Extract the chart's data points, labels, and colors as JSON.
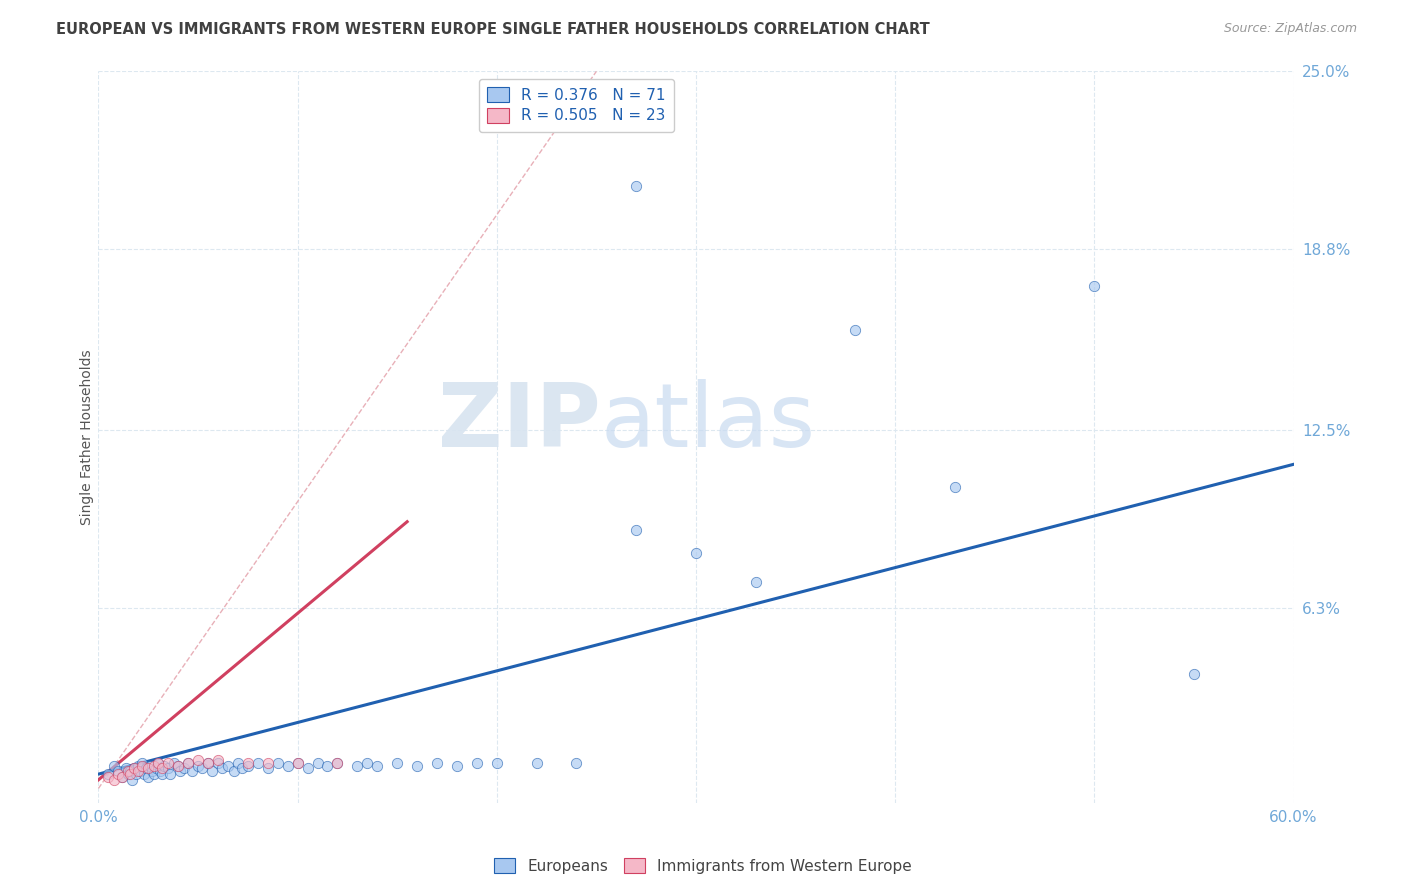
{
  "title": "EUROPEAN VS IMMIGRANTS FROM WESTERN EUROPE SINGLE FATHER HOUSEHOLDS CORRELATION CHART",
  "source": "Source: ZipAtlas.com",
  "ylabel": "Single Father Households",
  "watermark_zip": "ZIP",
  "watermark_atlas": "atlas",
  "xlim": [
    0.0,
    0.6
  ],
  "ylim": [
    -0.005,
    0.25
  ],
  "xticks": [
    0.0,
    0.1,
    0.2,
    0.3,
    0.4,
    0.5,
    0.6
  ],
  "ytick_labels_right": [
    "25.0%",
    "18.8%",
    "12.5%",
    "6.3%"
  ],
  "ytick_positions_right": [
    0.25,
    0.188,
    0.125,
    0.063
  ],
  "blue_R": 0.376,
  "blue_N": 71,
  "pink_R": 0.505,
  "pink_N": 23,
  "blue_color": "#a8c8f0",
  "pink_color": "#f5b8c8",
  "blue_line_color": "#2060b0",
  "pink_line_color": "#d04060",
  "diag_line_color": "#e8b0b8",
  "grid_color": "#dde8f0",
  "title_color": "#404040",
  "right_label_color": "#70a8d8",
  "blue_trend_x": [
    0.0,
    0.6
  ],
  "blue_trend_y": [
    0.005,
    0.113
  ],
  "pink_trend_x": [
    0.0,
    0.155
  ],
  "pink_trend_y": [
    0.003,
    0.093
  ],
  "diag_line_x": [
    0.0,
    0.25
  ],
  "diag_line_y": [
    0.0,
    0.25
  ],
  "bg_color": "#ffffff",
  "scatter_size": 55,
  "scatter_alpha": 0.65,
  "blue_scatter_x": [
    0.005,
    0.008,
    0.01,
    0.012,
    0.014,
    0.015,
    0.016,
    0.017,
    0.018,
    0.019,
    0.02,
    0.021,
    0.022,
    0.023,
    0.024,
    0.025,
    0.026,
    0.027,
    0.028,
    0.029,
    0.03,
    0.031,
    0.032,
    0.033,
    0.035,
    0.036,
    0.038,
    0.04,
    0.041,
    0.043,
    0.045,
    0.047,
    0.05,
    0.052,
    0.055,
    0.057,
    0.06,
    0.062,
    0.065,
    0.068,
    0.07,
    0.072,
    0.075,
    0.08,
    0.085,
    0.09,
    0.095,
    0.1,
    0.105,
    0.11,
    0.115,
    0.12,
    0.13,
    0.135,
    0.14,
    0.15,
    0.16,
    0.17,
    0.18,
    0.19,
    0.2,
    0.22,
    0.24,
    0.27,
    0.3,
    0.33,
    0.38,
    0.43,
    0.5,
    0.55,
    0.27
  ],
  "blue_scatter_y": [
    0.005,
    0.008,
    0.006,
    0.004,
    0.007,
    0.005,
    0.006,
    0.003,
    0.007,
    0.005,
    0.008,
    0.006,
    0.009,
    0.005,
    0.007,
    0.004,
    0.008,
    0.006,
    0.005,
    0.007,
    0.009,
    0.006,
    0.005,
    0.008,
    0.007,
    0.005,
    0.009,
    0.008,
    0.006,
    0.007,
    0.009,
    0.006,
    0.008,
    0.007,
    0.009,
    0.006,
    0.009,
    0.007,
    0.008,
    0.006,
    0.009,
    0.007,
    0.008,
    0.009,
    0.007,
    0.009,
    0.008,
    0.009,
    0.007,
    0.009,
    0.008,
    0.009,
    0.008,
    0.009,
    0.008,
    0.009,
    0.008,
    0.009,
    0.008,
    0.009,
    0.009,
    0.009,
    0.009,
    0.09,
    0.082,
    0.072,
    0.16,
    0.105,
    0.175,
    0.04,
    0.21
  ],
  "pink_scatter_x": [
    0.005,
    0.008,
    0.01,
    0.012,
    0.015,
    0.016,
    0.018,
    0.02,
    0.022,
    0.025,
    0.028,
    0.03,
    0.032,
    0.035,
    0.04,
    0.045,
    0.05,
    0.055,
    0.06,
    0.075,
    0.085,
    0.1,
    0.12
  ],
  "pink_scatter_y": [
    0.004,
    0.003,
    0.005,
    0.004,
    0.006,
    0.005,
    0.007,
    0.006,
    0.008,
    0.007,
    0.008,
    0.009,
    0.007,
    0.009,
    0.008,
    0.009,
    0.01,
    0.009,
    0.01,
    0.009,
    0.009,
    0.009,
    0.009
  ]
}
